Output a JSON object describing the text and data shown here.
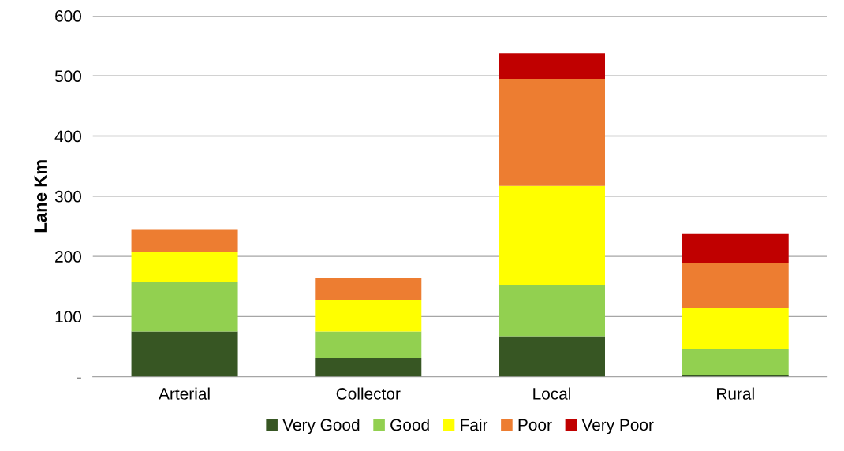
{
  "chart_data": {
    "type": "bar",
    "stacked": true,
    "ylabel": "Lane Km",
    "categories": [
      "Arterial",
      "Collector",
      "Local",
      "Rural"
    ],
    "series": [
      {
        "name": "Very Good",
        "color": "#375623",
        "values": [
          75,
          31,
          67,
          3
        ]
      },
      {
        "name": "Good",
        "color": "#92d050",
        "values": [
          82,
          44,
          86,
          43
        ]
      },
      {
        "name": "Fair",
        "color": "#ffff00",
        "values": [
          51,
          53,
          164,
          68
        ]
      },
      {
        "name": "Poor",
        "color": "#ed7d31",
        "values": [
          36,
          36,
          178,
          75
        ]
      },
      {
        "name": "Very Poor",
        "color": "#c00000",
        "values": [
          null,
          null,
          43,
          48
        ]
      }
    ],
    "ylim": [
      0,
      600
    ],
    "yticks": [
      {
        "value": 0,
        "label": "-"
      },
      100,
      200,
      300,
      400,
      500,
      600
    ],
    "grid": "y",
    "legend": "bottom"
  }
}
